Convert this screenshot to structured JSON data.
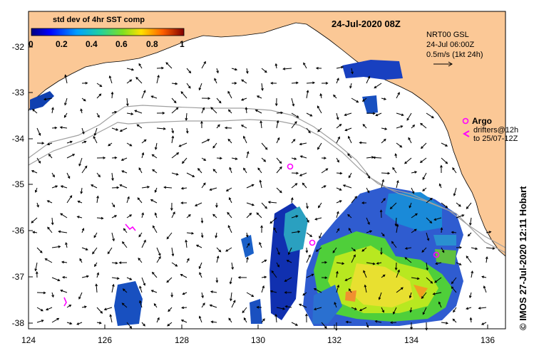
{
  "title": "24-Jul-2020 08Z",
  "colorbar": {
    "title": "std dev of 4hr SST comp",
    "ticks": [
      "0",
      "0.2",
      "0.4",
      "0.6",
      "0.8",
      "1"
    ]
  },
  "info": {
    "line1": "NRT00 GSL",
    "line2": "24-Jul 06:00Z",
    "line3": "0.5m/s (1kt 24h)"
  },
  "argo": {
    "label": "Argo",
    "drifters1": "drifters@12h",
    "drifters2": "to 25/07-12Z"
  },
  "credit": "©  IMOS 27-Jul-2020 12:11 Hobart",
  "x_ticks": [
    "124",
    "126",
    "128",
    "130",
    "132",
    "134",
    "136"
  ],
  "y_ticks": [
    "-32",
    "-33",
    "-34",
    "-35",
    "-36",
    "-37",
    "-38"
  ],
  "colors": {
    "land": "#fbc896",
    "argo": "#ff00ff",
    "contour": "#a0a0a0"
  }
}
